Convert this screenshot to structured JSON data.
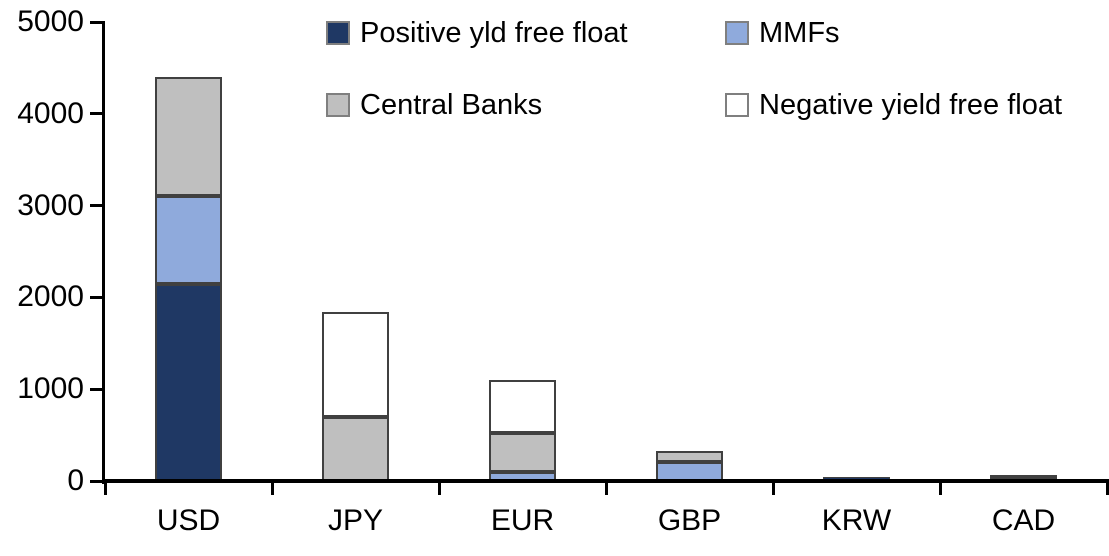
{
  "chart_data": {
    "type": "bar",
    "stacked": true,
    "title": "",
    "xlabel": "",
    "ylabel": "",
    "categories": [
      "USD",
      "JPY",
      "EUR",
      "GBP",
      "KRW",
      "CAD"
    ],
    "series": [
      {
        "name": "Positive yld free float",
        "color": "#1F3864",
        "values": [
          2150,
          0,
          0,
          0,
          45,
          25
        ]
      },
      {
        "name": "MMFs",
        "color": "#8FAADC",
        "values": [
          950,
          0,
          100,
          210,
          0,
          15
        ]
      },
      {
        "name": "Central Banks",
        "color": "#BFBFBF",
        "values": [
          1300,
          700,
          425,
          120,
          0,
          25
        ]
      },
      {
        "name": "Negative yield free float",
        "color": "#FFFFFF",
        "values": [
          0,
          1140,
          575,
          0,
          0,
          0
        ]
      }
    ],
    "totals_by_category": [
      4400,
      1840,
      1100,
      330,
      45,
      65
    ],
    "ylim": [
      0,
      5000
    ],
    "yticks": [
      0,
      1000,
      2000,
      3000,
      4000,
      5000
    ],
    "grid": false,
    "legend_position": "top",
    "legend_columns": 2,
    "axis_color": "#000000",
    "bar_border_color": "#404040",
    "legend_swatch_border_color": "#7F7F7F",
    "background_color": "#FFFFFF"
  }
}
